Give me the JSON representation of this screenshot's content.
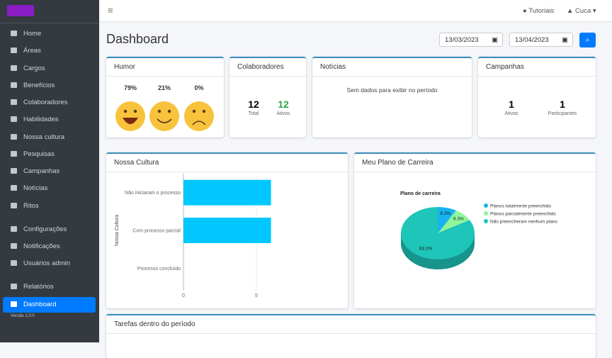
{
  "sidebar": {
    "items": [
      "Home",
      "Áreas",
      "Cargos",
      "Benefícios",
      "Colaboradores",
      "Habilidades",
      "Nossa cultura",
      "Pesquisas",
      "Campanhas",
      "Notícias",
      "Ritos",
      "Configurações",
      "Notificações",
      "Usuários admin",
      "Relatórios",
      "Dashboard"
    ],
    "version": "Versão 1.0.0"
  },
  "topbar": {
    "tutorials": "Tutoriais",
    "user": "Cuca"
  },
  "header": {
    "title": "Dashboard",
    "date_from": "13/03/2023",
    "date_to": "13/04/2023"
  },
  "cards": {
    "humor": {
      "title": "Humor",
      "values": [
        "79%",
        "21%",
        "0%"
      ]
    },
    "colaboradores": {
      "title": "Colaboradores",
      "total": 12,
      "total_label": "Total",
      "active": 12,
      "active_label": "Ativos"
    },
    "noticias": {
      "title": "Notícias",
      "message": "Sem dados para exibir no período"
    },
    "campanhas": {
      "title": "Campanhas",
      "active": 1,
      "active_label": "Ativas",
      "participants": 1,
      "participants_label": "Participantes"
    }
  },
  "chart_data": [
    {
      "type": "bar",
      "orientation": "horizontal",
      "title": "Nossa Cultura",
      "ylabel": "Nossa Cultura",
      "categories": [
        "Não iniciaram o processo",
        "Com processo parcial",
        "Processo concluído"
      ],
      "values": [
        6,
        6,
        0
      ],
      "color": "#00c8ff",
      "xlim": [
        0,
        10
      ],
      "xticks": [
        0,
        5
      ]
    },
    {
      "type": "pie",
      "card_title": "Meu Plano de Carreira",
      "title": "Plano de carreira",
      "categories": [
        "Planos totalmente preenchido",
        "Planos parcialmente preenchido",
        "Não preencheram nenhum plano"
      ],
      "values": [
        8.3,
        8.3,
        83.3
      ],
      "value_labels": [
        "8.3%",
        "8.3%",
        "83.3%"
      ],
      "colors": [
        "#17b3ef",
        "#8ef59c",
        "#1ec5b9"
      ]
    }
  ],
  "tasks": {
    "title": "Tarefas dentro do período"
  }
}
